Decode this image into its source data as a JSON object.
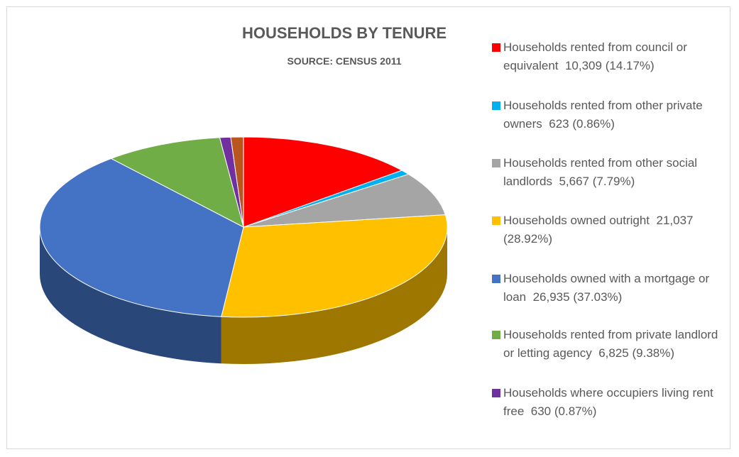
{
  "chart_data": {
    "type": "pie3d",
    "title": "HOUSEHOLDS BY TENURE",
    "subtitle": "SOURCE: CENSUS 2011",
    "categories": [
      "Households rented from council or equivalent",
      "Households rented from other private owners",
      "Households rented from other social landlords",
      "Households owned outright",
      "Households owned with a mortgage or loan",
      "Households rented from private landlord or letting agency",
      "Households where occupiers living rent free",
      null
    ],
    "values": [
      10309,
      623,
      5667,
      21037,
      26935,
      6825,
      630,
      726
    ],
    "value_labels": [
      "10,309",
      "623",
      "5,667",
      "21,037",
      "26,935",
      "6,825",
      "630",
      null
    ],
    "percentages": [
      14.17,
      0.86,
      7.79,
      28.92,
      37.03,
      9.38,
      0.87,
      0.98
    ],
    "percentage_labels": [
      "(14.17%)",
      "(0.86%)",
      "(7.79%)",
      "(28.92%)",
      "(37.03%)",
      "(9.38%)",
      "(0.87%)",
      null
    ],
    "colors": [
      "#ff0000",
      "#00b0f0",
      "#a5a5a5",
      "#ffc000",
      "#4472c4",
      "#70ad47",
      "#7030a0",
      "#b8561e"
    ],
    "legend": "right"
  }
}
